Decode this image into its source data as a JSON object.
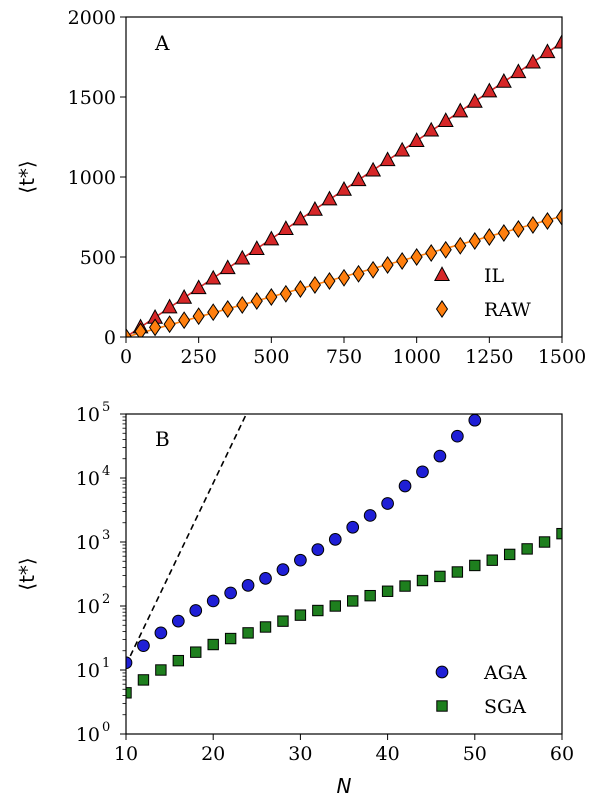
{
  "chart_data": [
    {
      "type": "scatter",
      "panel_label": "A",
      "ylabel": "⟨t*⟩",
      "xlabel": "",
      "xlim": [
        0,
        1500
      ],
      "ylim": [
        0,
        2000
      ],
      "x_ticks": [
        0,
        250,
        500,
        750,
        1000,
        1250,
        1500
      ],
      "y_ticks": [
        0,
        500,
        1000,
        1500,
        2000
      ],
      "x_tick_labels": [
        "0",
        "250",
        "500",
        "750",
        "1000",
        "1250",
        "1500"
      ],
      "y_tick_labels": [
        "0",
        "500",
        "1000",
        "1500",
        "2000"
      ],
      "legend_position": "lower-right",
      "series": [
        {
          "name": "IL",
          "marker": "triangle",
          "color": "#d62728",
          "fit_line_color": "#d62728",
          "fit": [
            [
              0,
              0
            ],
            [
              1500,
              1840
            ]
          ],
          "x": [
            0,
            50,
            100,
            150,
            200,
            250,
            300,
            350,
            400,
            450,
            500,
            550,
            600,
            650,
            700,
            750,
            800,
            850,
            900,
            950,
            1000,
            1050,
            1100,
            1150,
            1200,
            1250,
            1300,
            1350,
            1400,
            1450,
            1500
          ],
          "values": [
            0,
            60,
            120,
            185,
            245,
            305,
            365,
            430,
            490,
            550,
            610,
            675,
            735,
            795,
            860,
            920,
            980,
            1040,
            1105,
            1165,
            1225,
            1290,
            1350,
            1410,
            1470,
            1535,
            1595,
            1655,
            1715,
            1780,
            1840
          ]
        },
        {
          "name": "RAW",
          "marker": "diamond",
          "color": "#ff7f0e",
          "fit_line_color": "#ff7f0e",
          "fit": [
            [
              0,
              0
            ],
            [
              1500,
              755
            ]
          ],
          "x": [
            0,
            50,
            100,
            150,
            200,
            250,
            300,
            350,
            400,
            450,
            500,
            550,
            600,
            650,
            700,
            750,
            800,
            850,
            900,
            950,
            1000,
            1050,
            1100,
            1150,
            1200,
            1250,
            1300,
            1350,
            1400,
            1450,
            1500
          ],
          "values": [
            0,
            35,
            60,
            80,
            105,
            130,
            155,
            175,
            200,
            225,
            250,
            270,
            300,
            325,
            350,
            370,
            395,
            420,
            450,
            475,
            500,
            525,
            545,
            570,
            600,
            625,
            650,
            675,
            700,
            725,
            750
          ]
        }
      ]
    },
    {
      "type": "scatter",
      "panel_label": "B",
      "ylabel": "⟨t*⟩",
      "xlabel": "N",
      "xlim": [
        10,
        60
      ],
      "ylim": [
        1,
        100000
      ],
      "yscale": "log",
      "x_ticks": [
        10,
        20,
        30,
        40,
        50,
        60
      ],
      "x_tick_labels": [
        "10",
        "20",
        "30",
        "40",
        "50",
        "60"
      ],
      "y_ticks": [
        1,
        10,
        100,
        1000,
        10000,
        100000
      ],
      "y_tick_base": "10",
      "y_tick_exponents": [
        "0",
        "1",
        "2",
        "3",
        "4",
        "5"
      ],
      "legend_position": "lower-right",
      "reference_line": {
        "style": "dashed",
        "color": "#000000",
        "from": [
          10,
          12
        ],
        "to": [
          23.8,
          100000
        ]
      },
      "series": [
        {
          "name": "AGA",
          "marker": "circle",
          "color": "#1f1fd6",
          "x": [
            10,
            12,
            14,
            16,
            18,
            20,
            22,
            24,
            26,
            28,
            30,
            32,
            34,
            36,
            38,
            40,
            42,
            44,
            46,
            48,
            50
          ],
          "values": [
            13,
            24,
            38,
            58,
            85,
            120,
            160,
            210,
            270,
            370,
            520,
            760,
            1100,
            1700,
            2600,
            4000,
            7500,
            12500,
            22000,
            45000,
            80000
          ]
        },
        {
          "name": "SGA",
          "marker": "square",
          "color": "#1e7f1e",
          "x": [
            10,
            12,
            14,
            16,
            18,
            20,
            22,
            24,
            26,
            28,
            30,
            32,
            34,
            36,
            38,
            40,
            42,
            44,
            46,
            48,
            50,
            52,
            54,
            56,
            58,
            60
          ],
          "values": [
            4.4,
            7,
            10,
            14,
            19,
            25,
            31,
            38,
            47,
            58,
            72,
            85,
            100,
            120,
            145,
            170,
            205,
            250,
            290,
            340,
            430,
            520,
            640,
            780,
            1000,
            1350
          ]
        }
      ]
    }
  ]
}
